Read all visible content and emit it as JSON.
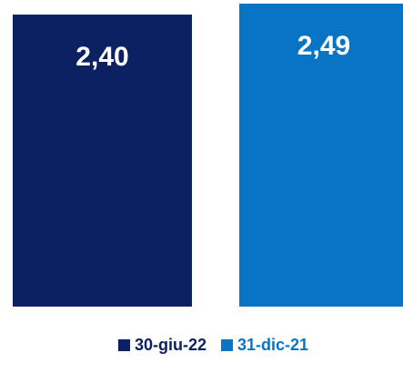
{
  "chart_data": {
    "type": "bar",
    "categories": [
      "30-giu-22",
      "31-dic-21"
    ],
    "values": [
      2.4,
      2.49
    ],
    "value_labels": [
      "2,40",
      "2,49"
    ],
    "colors": [
      "#0b2162",
      "#0a74c4"
    ],
    "ylim": [
      0,
      2.49
    ],
    "legend": {
      "position": "bottom",
      "entries": [
        "30-giu-22",
        "31-dic-21"
      ]
    },
    "grid": false
  }
}
